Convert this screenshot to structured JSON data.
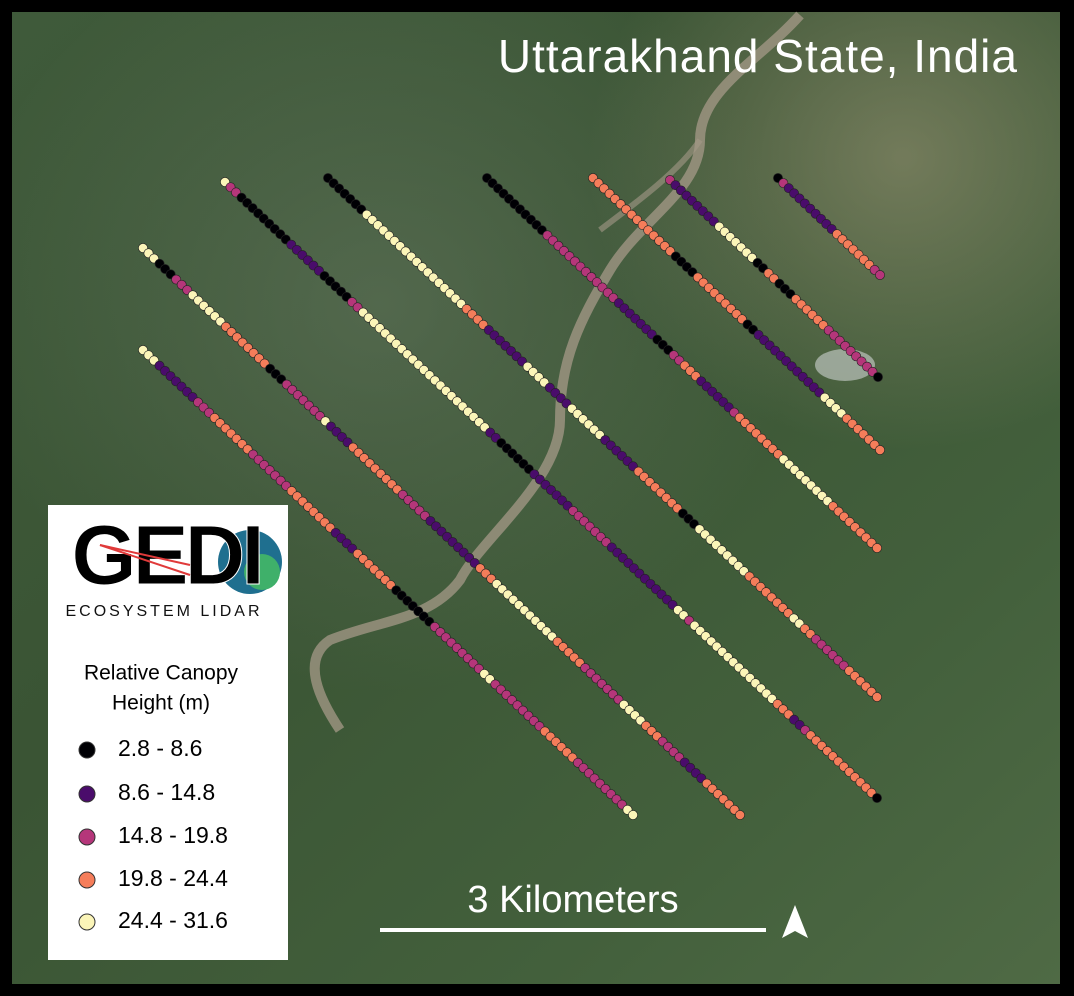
{
  "title": "Uttarakhand State, India",
  "logo": {
    "name": "GEDI",
    "subtitle": "ECOSYSTEM LIDAR"
  },
  "legend": {
    "title_lines": [
      "Relative Canopy",
      "Height (m)"
    ],
    "entries": [
      {
        "label": "2.8 - 8.6",
        "color": "#000004"
      },
      {
        "label": "8.6 - 14.8",
        "color": "#4a0c6b"
      },
      {
        "label": "14.8 - 19.8",
        "color": "#b5367a"
      },
      {
        "label": "19.8 - 24.4",
        "color": "#f57d5a"
      },
      {
        "label": "24.4 - 31.6",
        "color": "#fbf5b8"
      }
    ]
  },
  "scale_bar": {
    "label": "3 Kilometers"
  }
}
